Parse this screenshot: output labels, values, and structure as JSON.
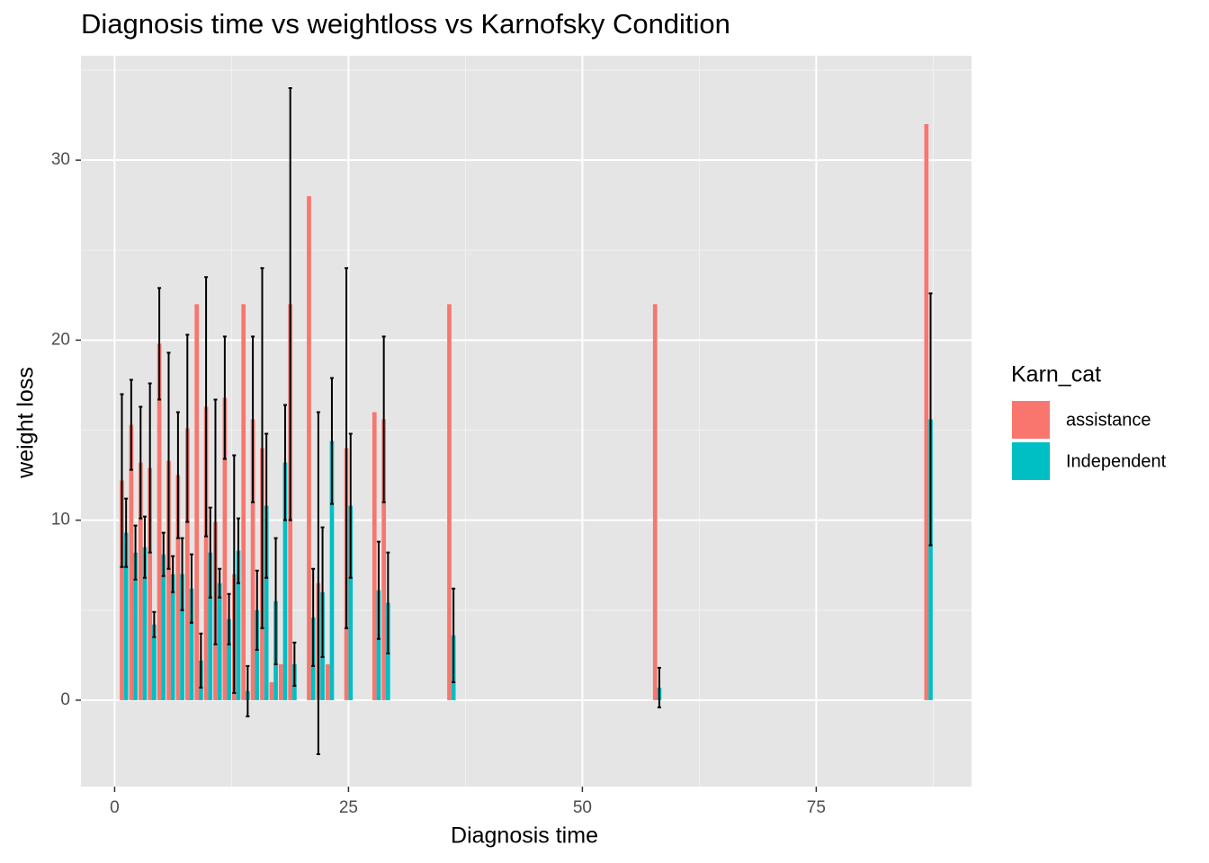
{
  "chart_data": {
    "type": "bar",
    "title": "Diagnosis time vs weightloss vs Karnofsky Condition",
    "x_label": "Diagnosis time",
    "y_label": "weight loss",
    "legend_title": "Karn_cat",
    "x": [
      1,
      2,
      3,
      4,
      5,
      6,
      7,
      8,
      9,
      10,
      11,
      12,
      13,
      14,
      15,
      16,
      17,
      18,
      19,
      21,
      22,
      23,
      25,
      28,
      29,
      36,
      58,
      87
    ],
    "series": [
      {
        "name": "assistance",
        "color": "#f8766d",
        "values": [
          12.2,
          15.3,
          13.2,
          12.9,
          19.8,
          13.3,
          12.5,
          15.1,
          22,
          16.3,
          9.9,
          16.8,
          7.0,
          22,
          15.6,
          14.0,
          1.0,
          2.0,
          22,
          28,
          6.5,
          2.0,
          14.0,
          16.0,
          15.6,
          22,
          22,
          32
        ],
        "errors": [
          4.8,
          2.5,
          3.1,
          4.7,
          3.1,
          6.0,
          3.5,
          5.2,
          null,
          7.2,
          6.8,
          3.4,
          6.6,
          null,
          4.6,
          10.0,
          null,
          null,
          12,
          null,
          9.5,
          null,
          10.0,
          null,
          4.6,
          null,
          null,
          null
        ]
      },
      {
        "name": "Independent",
        "color": "#00bfc4",
        "values": [
          9.3,
          8.2,
          8.5,
          4.2,
          8.1,
          7.0,
          7.0,
          6.2,
          2.2,
          8.2,
          6.5,
          4.5,
          8.3,
          0.5,
          5.0,
          10.8,
          5.5,
          13.2,
          2.0,
          4.6,
          6.0,
          14.4,
          10.8,
          6.1,
          5.4,
          3.6,
          0.7,
          15.6
        ],
        "errors": [
          1.9,
          1.5,
          1.7,
          0.7,
          1.2,
          1.0,
          2.0,
          1.9,
          1.5,
          2.5,
          0.8,
          1.4,
          1.8,
          1.4,
          2.2,
          4.0,
          3.5,
          3.2,
          1.2,
          2.7,
          3.6,
          3.5,
          4.0,
          2.7,
          2.8,
          2.6,
          1.1,
          7.0
        ]
      }
    ],
    "xlim": [
      -3.6,
      91.6
    ],
    "ylim": [
      -4.8,
      35.8
    ],
    "xticks": [
      0,
      25,
      50,
      75
    ],
    "yticks": [
      0,
      10,
      20,
      30
    ],
    "xminorticks": [
      12.5,
      37.5,
      62.5,
      87.5
    ],
    "yminorticks": [
      5,
      15,
      25,
      35
    ],
    "grid": true,
    "legend": "right"
  }
}
